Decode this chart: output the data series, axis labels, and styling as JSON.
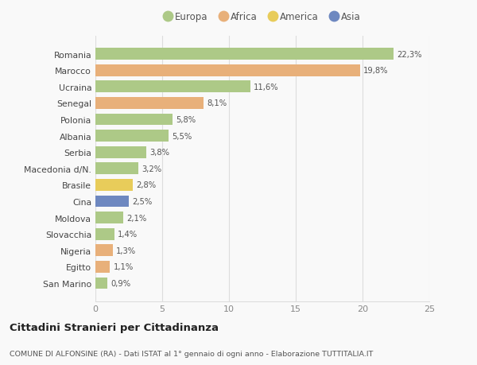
{
  "categories": [
    "Romania",
    "Marocco",
    "Ucraina",
    "Senegal",
    "Polonia",
    "Albania",
    "Serbia",
    "Macedonia d/N.",
    "Brasile",
    "Cina",
    "Moldova",
    "Slovacchia",
    "Nigeria",
    "Egitto",
    "San Marino"
  ],
  "values": [
    22.3,
    19.8,
    11.6,
    8.1,
    5.8,
    5.5,
    3.8,
    3.2,
    2.8,
    2.5,
    2.1,
    1.4,
    1.3,
    1.1,
    0.9
  ],
  "labels": [
    "22,3%",
    "19,8%",
    "11,6%",
    "8,1%",
    "5,8%",
    "5,5%",
    "3,8%",
    "3,2%",
    "2,8%",
    "2,5%",
    "2,1%",
    "1,4%",
    "1,3%",
    "1,1%",
    "0,9%"
  ],
  "colors": [
    "#adc987",
    "#e8b07a",
    "#adc987",
    "#e8b07a",
    "#adc987",
    "#adc987",
    "#adc987",
    "#adc987",
    "#e8cc5a",
    "#6e88c0",
    "#adc987",
    "#adc987",
    "#e8b07a",
    "#e8b07a",
    "#adc987"
  ],
  "legend": [
    {
      "label": "Europa",
      "color": "#adc987"
    },
    {
      "label": "Africa",
      "color": "#e8b07a"
    },
    {
      "label": "America",
      "color": "#e8cc5a"
    },
    {
      "label": "Asia",
      "color": "#6e88c0"
    }
  ],
  "xlim": [
    0,
    25
  ],
  "xticks": [
    0,
    5,
    10,
    15,
    20,
    25
  ],
  "title": "Cittadini Stranieri per Cittadinanza",
  "subtitle": "COMUNE DI ALFONSINE (RA) - Dati ISTAT al 1° gennaio di ogni anno - Elaborazione TUTTITALIA.IT",
  "background_color": "#f9f9f9",
  "grid_color": "#dddddd"
}
